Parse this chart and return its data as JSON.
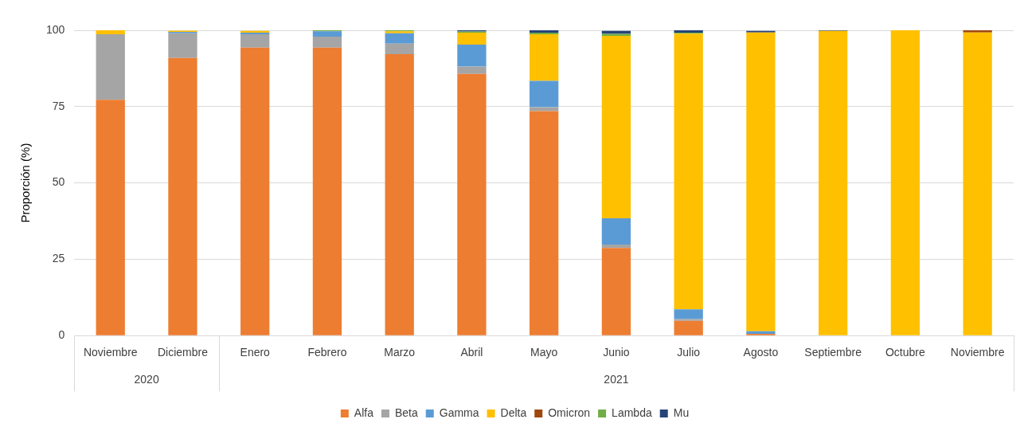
{
  "chart_data": {
    "type": "bar",
    "stacked": true,
    "ylabel": "Proporción (%)",
    "categories": [
      "Noviembre",
      "Diciembre",
      "Enero",
      "Febrero",
      "Marzo",
      "Abril",
      "Mayo",
      "Junio",
      "Julio",
      "Agosto",
      "Septiembre",
      "Octubre",
      "Noviembre"
    ],
    "annotations": [
      "2020",
      "2021"
    ],
    "series": [
      {
        "name": "Alfa",
        "color": "#ed7d31",
        "values": [
          77.2,
          90.9,
          94.3,
          94.3,
          92.2,
          85.7,
          73.5,
          28.7,
          4.8,
          0.6,
          0,
          0,
          0
        ]
      },
      {
        "name": "Beta",
        "color": "#a5a5a5",
        "values": [
          21.5,
          8.1,
          4.4,
          3.6,
          3.4,
          2.4,
          1.3,
          1.1,
          0.6,
          null,
          0,
          0,
          0
        ]
      },
      {
        "name": "Gamma",
        "color": "#5b9bd5",
        "values": [
          0,
          0.5,
          0.5,
          1.8,
          3.4,
          7.2,
          8.6,
          8.6,
          3.2,
          0.8,
          0,
          0,
          0
        ]
      },
      {
        "name": "Delta",
        "color": "#ffc000",
        "values": [
          1.3,
          0.4,
          0.6,
          0,
          0.7,
          3.9,
          15.3,
          59.8,
          90.3,
          97.9,
          99.8,
          100,
          99.3
        ]
      },
      {
        "name": "Omicron",
        "color": "#9e480e",
        "values": [
          0,
          0,
          0,
          0,
          0,
          0,
          0,
          0,
          0,
          0,
          0,
          0,
          0.7
        ]
      },
      {
        "name": "Lambda",
        "color": "#70ad47",
        "values": [
          0,
          0,
          0,
          0.3,
          0.3,
          0.4,
          0.5,
          0.6,
          0.3,
          0,
          0,
          0,
          0
        ]
      },
      {
        "name": "Mu",
        "color": "#264478",
        "values": [
          0,
          0,
          0,
          0,
          0,
          0.4,
          0.8,
          1.0,
          0.8,
          0.5,
          0.2,
          0,
          0
        ]
      }
    ],
    "ylim": [
      0,
      100
    ],
    "yticks": [
      0,
      25,
      50,
      75,
      100
    ],
    "grid": "y",
    "legend": "bottom"
  }
}
